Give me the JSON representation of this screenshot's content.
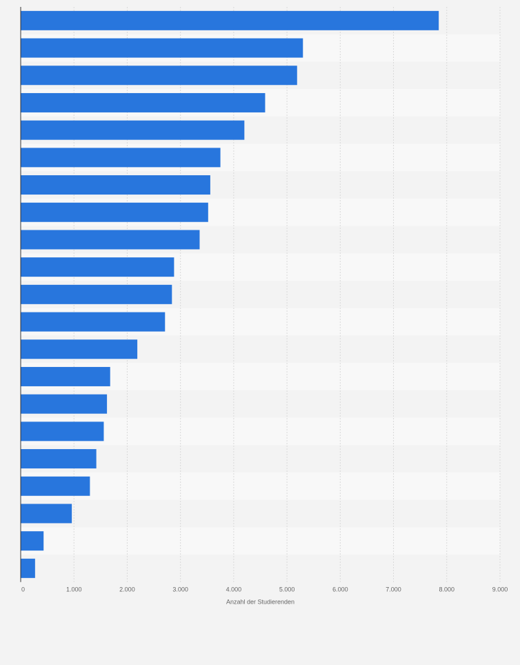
{
  "chart_data": {
    "type": "bar",
    "orientation": "horizontal",
    "values": [
      7850,
      5300,
      5190,
      4590,
      4200,
      3750,
      3560,
      3520,
      3360,
      2880,
      2840,
      2710,
      2190,
      1680,
      1620,
      1560,
      1420,
      1300,
      960,
      430,
      270
    ],
    "xlabel": "Anzahl der Studierenden",
    "xlim": [
      0,
      9000
    ],
    "x_ticks": [
      0,
      1000,
      2000,
      3000,
      4000,
      5000,
      6000,
      7000,
      8000,
      9000
    ],
    "x_tick_labels": [
      "0",
      "1.000",
      "2.000",
      "3.000",
      "4.000",
      "5.000",
      "6.000",
      "7.000",
      "8.000",
      "9.000"
    ],
    "grid": true,
    "bar_color": "#2876dd",
    "band_colors": [
      "#f3f3f3",
      "#f8f8f8"
    ],
    "grid_color": "#d9d9d9",
    "axis_color": "#333333"
  }
}
